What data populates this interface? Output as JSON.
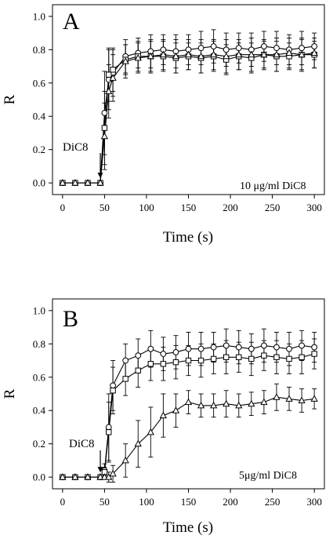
{
  "chart_data": [
    {
      "type": "line",
      "panel_label": "A",
      "annotation": "10 μg/ml DiC8",
      "arrow_label": "DiC8",
      "arrow_x": 45,
      "xlabel": "Time (s)",
      "ylabel": "R",
      "xlim": [
        -12,
        312
      ],
      "ylim": [
        -0.07,
        1.07
      ],
      "x_ticks": [
        0,
        50,
        100,
        150,
        200,
        250,
        300
      ],
      "x_tick_labels": [
        "0",
        "50",
        "100",
        "150",
        "200",
        "250",
        "300"
      ],
      "y_ticks": [
        0.0,
        0.2,
        0.4,
        0.6,
        0.8,
        1.0
      ],
      "y_tick_labels": [
        "0.0",
        "0.2",
        "0.4",
        "0.6",
        "0.8",
        "1.0"
      ],
      "series": [
        {
          "marker": "circle",
          "x": [
            0,
            15,
            30,
            45,
            50,
            55,
            60,
            75,
            90,
            105,
            120,
            135,
            150,
            165,
            180,
            195,
            210,
            225,
            240,
            255,
            270,
            285,
            300
          ],
          "y": [
            0,
            0,
            0,
            0,
            0.42,
            0.62,
            0.66,
            0.76,
            0.78,
            0.79,
            0.8,
            0.79,
            0.8,
            0.81,
            0.82,
            0.8,
            0.81,
            0.8,
            0.82,
            0.81,
            0.8,
            0.81,
            0.82
          ],
          "err": [
            0,
            0,
            0,
            0,
            0.25,
            0.18,
            0.14,
            0.1,
            0.09,
            0.1,
            0.09,
            0.1,
            0.09,
            0.1,
            0.1,
            0.1,
            0.09,
            0.1,
            0.09,
            0.1,
            0.09,
            0.1,
            0.08
          ]
        },
        {
          "marker": "square",
          "x": [
            0,
            15,
            30,
            45,
            50,
            55,
            60,
            75,
            90,
            105,
            120,
            135,
            150,
            165,
            180,
            195,
            210,
            225,
            240,
            255,
            270,
            285,
            300
          ],
          "y": [
            0,
            0,
            0,
            0,
            0.33,
            0.65,
            0.68,
            0.74,
            0.76,
            0.76,
            0.76,
            0.75,
            0.76,
            0.75,
            0.76,
            0.74,
            0.76,
            0.75,
            0.77,
            0.76,
            0.76,
            0.77,
            0.77
          ],
          "err": [
            0,
            0,
            0,
            0,
            0.22,
            0.16,
            0.13,
            0.09,
            0.09,
            0.09,
            0.09,
            0.09,
            0.08,
            0.09,
            0.09,
            0.09,
            0.08,
            0.09,
            0.08,
            0.09,
            0.08,
            0.09,
            0.08
          ]
        },
        {
          "marker": "triangle",
          "x": [
            0,
            15,
            30,
            45,
            50,
            55,
            60,
            75,
            90,
            105,
            120,
            135,
            150,
            165,
            180,
            195,
            210,
            225,
            240,
            255,
            270,
            285,
            300
          ],
          "y": [
            0,
            0,
            0,
            0,
            0.28,
            0.55,
            0.63,
            0.73,
            0.75,
            0.76,
            0.77,
            0.76,
            0.77,
            0.76,
            0.77,
            0.76,
            0.77,
            0.77,
            0.77,
            0.77,
            0.78,
            0.77,
            0.78
          ],
          "err": [
            0,
            0,
            0,
            0,
            0.2,
            0.16,
            0.14,
            0.1,
            0.09,
            0.1,
            0.09,
            0.1,
            0.09,
            0.1,
            0.09,
            0.1,
            0.09,
            0.1,
            0.09,
            0.1,
            0.09,
            0.1,
            0.09
          ]
        }
      ]
    },
    {
      "type": "line",
      "panel_label": "B",
      "annotation": "5μg/ml DiC8",
      "arrow_label": "DiC8",
      "arrow_x": 45,
      "xlabel": "Time (s)",
      "ylabel": "R",
      "xlim": [
        -12,
        312
      ],
      "ylim": [
        -0.07,
        1.07
      ],
      "x_ticks": [
        0,
        50,
        100,
        150,
        200,
        250,
        300
      ],
      "x_tick_labels": [
        "0",
        "50",
        "100",
        "150",
        "200",
        "250",
        "300"
      ],
      "y_ticks": [
        0.0,
        0.2,
        0.4,
        0.6,
        0.8,
        1.0
      ],
      "y_tick_labels": [
        "0.0",
        "0.2",
        "0.4",
        "0.6",
        "0.8",
        "1.0"
      ],
      "series": [
        {
          "marker": "circle",
          "x": [
            0,
            15,
            30,
            45,
            50,
            55,
            60,
            75,
            90,
            105,
            120,
            135,
            150,
            165,
            180,
            195,
            210,
            225,
            240,
            255,
            270,
            285,
            300
          ],
          "y": [
            0,
            0,
            0,
            0,
            0.04,
            0.3,
            0.55,
            0.7,
            0.73,
            0.77,
            0.74,
            0.75,
            0.77,
            0.77,
            0.78,
            0.79,
            0.78,
            0.77,
            0.79,
            0.78,
            0.77,
            0.79,
            0.78
          ],
          "err": [
            0,
            0,
            0,
            0,
            0.04,
            0.2,
            0.15,
            0.1,
            0.1,
            0.11,
            0.1,
            0.1,
            0.1,
            0.1,
            0.09,
            0.1,
            0.1,
            0.09,
            0.1,
            0.09,
            0.1,
            0.09,
            0.09
          ]
        },
        {
          "marker": "square",
          "x": [
            0,
            15,
            30,
            45,
            50,
            55,
            60,
            75,
            90,
            105,
            120,
            135,
            150,
            165,
            180,
            195,
            210,
            225,
            240,
            255,
            270,
            285,
            300
          ],
          "y": [
            0,
            0,
            0,
            0,
            0.03,
            0.27,
            0.52,
            0.59,
            0.64,
            0.68,
            0.68,
            0.69,
            0.7,
            0.7,
            0.71,
            0.72,
            0.72,
            0.71,
            0.73,
            0.72,
            0.71,
            0.72,
            0.74
          ],
          "err": [
            0,
            0,
            0,
            0,
            0.03,
            0.18,
            0.14,
            0.1,
            0.1,
            0.1,
            0.1,
            0.1,
            0.09,
            0.1,
            0.09,
            0.1,
            0.09,
            0.1,
            0.09,
            0.1,
            0.09,
            0.1,
            0.09
          ]
        },
        {
          "marker": "triangle",
          "x": [
            0,
            15,
            30,
            45,
            50,
            55,
            60,
            75,
            90,
            105,
            120,
            135,
            150,
            165,
            180,
            195,
            210,
            225,
            240,
            255,
            270,
            285,
            300
          ],
          "y": [
            0,
            0,
            0,
            0,
            0.0,
            0.0,
            0.02,
            0.1,
            0.2,
            0.27,
            0.37,
            0.4,
            0.45,
            0.43,
            0.43,
            0.44,
            0.43,
            0.44,
            0.45,
            0.48,
            0.47,
            0.46,
            0.47
          ],
          "err": [
            0,
            0,
            0,
            0,
            0.01,
            0.03,
            0.05,
            0.1,
            0.14,
            0.15,
            0.13,
            0.1,
            0.07,
            0.07,
            0.07,
            0.08,
            0.07,
            0.07,
            0.07,
            0.08,
            0.07,
            0.07,
            0.06
          ]
        }
      ]
    }
  ]
}
